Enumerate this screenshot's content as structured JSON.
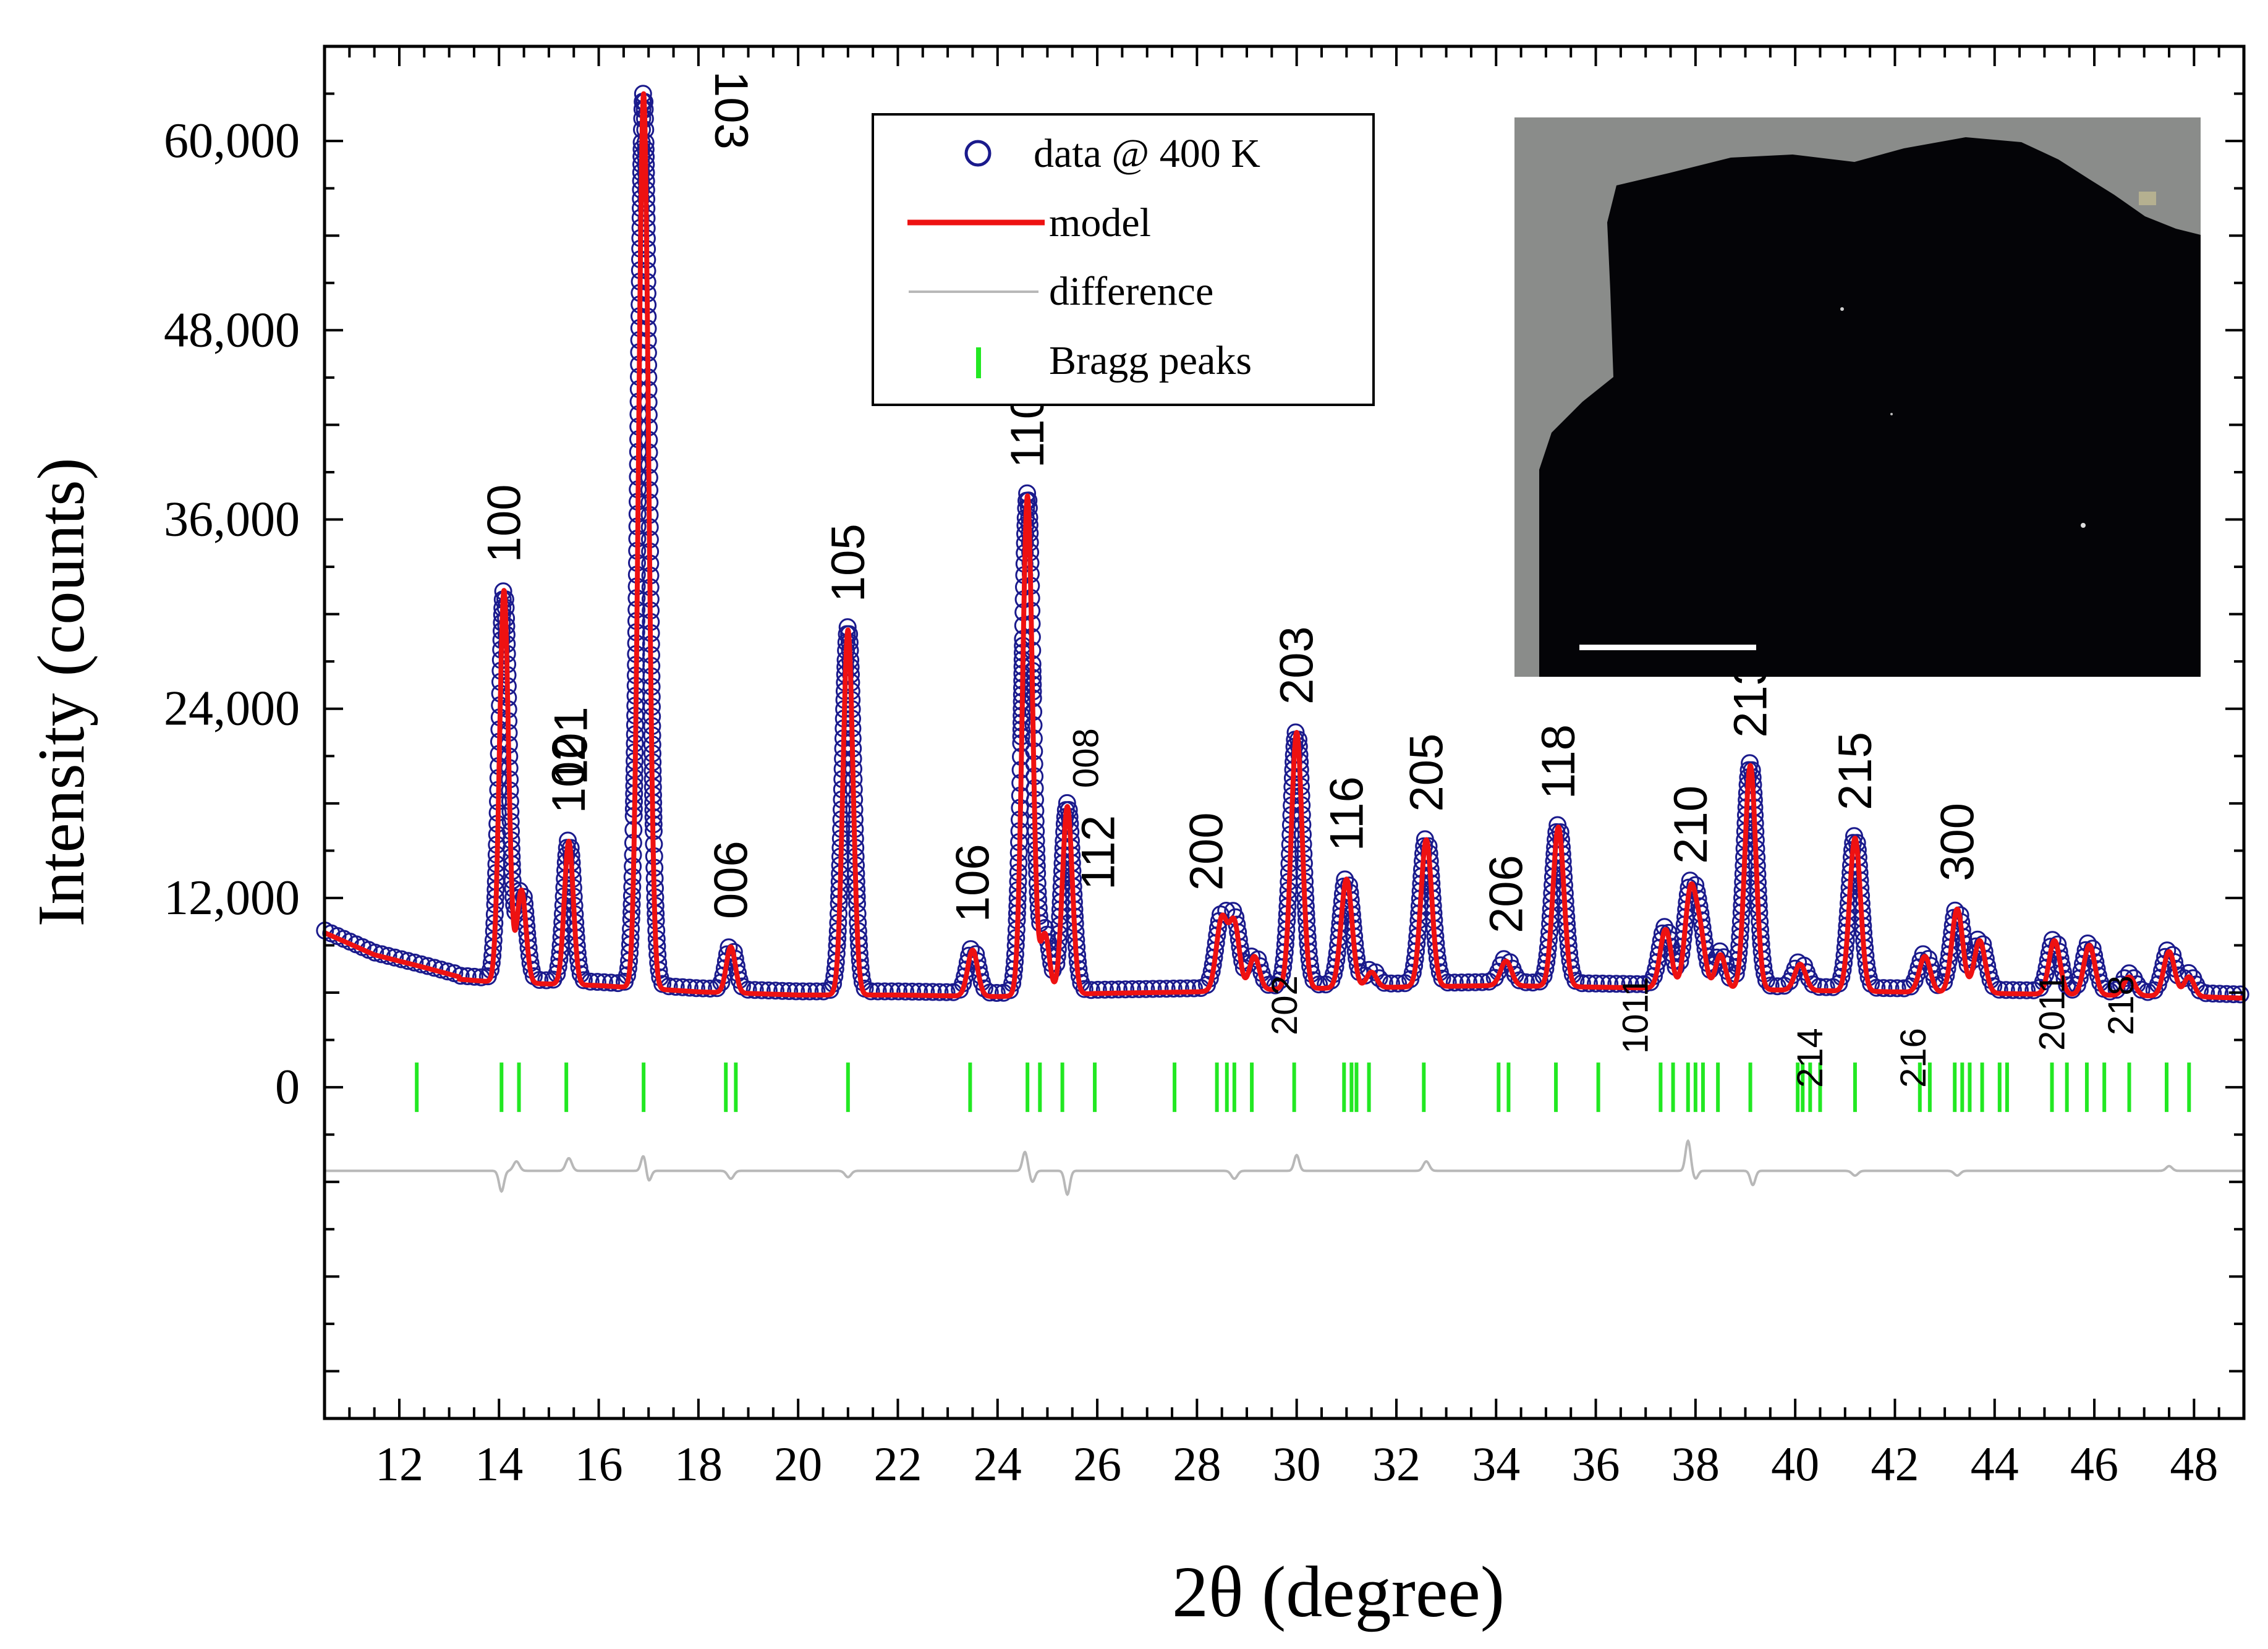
{
  "chart_data": {
    "type": "line",
    "title": "",
    "xlabel": "2θ (degree)",
    "ylabel": "Intensity (counts)",
    "xlim": [
      10.5,
      49
    ],
    "ylim": [
      -21000,
      66000
    ],
    "x_ticks": [
      "12",
      "14",
      "16",
      "18",
      "20",
      "22",
      "24",
      "26",
      "28",
      "30",
      "32",
      "34",
      "36",
      "38",
      "40",
      "42",
      "44",
      "46",
      "48"
    ],
    "y_ticks": [
      {
        "value": 0,
        "label": "0"
      },
      {
        "value": 12000,
        "label": "12,000"
      },
      {
        "value": 24000,
        "label": "24,000"
      },
      {
        "value": 36000,
        "label": "36,000"
      },
      {
        "value": 48000,
        "label": "48,000"
      },
      {
        "value": 60000,
        "label": "60,000"
      }
    ],
    "background": {
      "points": [
        [
          10.5,
          9800
        ],
        [
          11.5,
          8400
        ],
        [
          12.5,
          7600
        ],
        [
          13.2,
          7000
        ],
        [
          14,
          6800
        ],
        [
          16,
          6600
        ],
        [
          18,
          6200
        ],
        [
          20,
          6000
        ],
        [
          22,
          6000
        ],
        [
          24,
          5900
        ],
        [
          26,
          6100
        ],
        [
          28,
          6200
        ],
        [
          30,
          6400
        ],
        [
          32,
          6500
        ],
        [
          34,
          6600
        ],
        [
          36,
          6500
        ],
        [
          38,
          6400
        ],
        [
          40,
          6300
        ],
        [
          42,
          6200
        ],
        [
          44,
          6100
        ],
        [
          46,
          6000
        ],
        [
          48,
          5900
        ],
        [
          49,
          5800
        ]
      ]
    },
    "peaks": [
      {
        "hkl": "100",
        "x": 14.1,
        "y": 31500,
        "w": 0.09
      },
      {
        "hkl": "101",
        "x": 14.45,
        "y": 12500,
        "w": 0.09
      },
      {
        "hkl": "102",
        "x": 15.4,
        "y": 15600,
        "w": 0.09
      },
      {
        "hkl": "103",
        "x": 16.9,
        "y": 63000,
        "w": 0.1
      },
      {
        "hkl": "006",
        "x": 18.65,
        "y": 8900,
        "w": 0.09
      },
      {
        "hkl": "105",
        "x": 21.0,
        "y": 29000,
        "w": 0.1
      },
      {
        "hkl": "106",
        "x": 23.5,
        "y": 8700,
        "w": 0.1
      },
      {
        "hkl": "110",
        "x": 24.6,
        "y": 37500,
        "w": 0.1
      },
      {
        "hkl": "008",
        "x": 24.95,
        "y": 9700,
        "w": 0.09
      },
      {
        "hkl": "112",
        "x": 25.4,
        "y": 17800,
        "w": 0.1
      },
      {
        "hkl": "200",
        "x": 28.5,
        "y": 10700,
        "w": 0.11
      },
      {
        "hkl": "202",
        "x": 28.75,
        "y": 10300,
        "w": 0.1
      },
      {
        "hkl": "",
        "x": 29.15,
        "y": 8300,
        "w": 0.1
      },
      {
        "hkl": "203",
        "x": 30.0,
        "y": 22500,
        "w": 0.11
      },
      {
        "hkl": "116",
        "x": 31.0,
        "y": 13200,
        "w": 0.11
      },
      {
        "hkl": "",
        "x": 31.5,
        "y": 7300,
        "w": 0.1
      },
      {
        "hkl": "205",
        "x": 32.6,
        "y": 15700,
        "w": 0.11
      },
      {
        "hkl": "206",
        "x": 34.2,
        "y": 8000,
        "w": 0.11
      },
      {
        "hkl": "118",
        "x": 35.25,
        "y": 16500,
        "w": 0.11
      },
      {
        "hkl": "1011",
        "x": 37.4,
        "y": 10000,
        "w": 0.11
      },
      {
        "hkl": "210",
        "x": 37.9,
        "y": 12400,
        "w": 0.11
      },
      {
        "hkl": "",
        "x": 38.1,
        "y": 9300,
        "w": 0.1
      },
      {
        "hkl": "",
        "x": 38.5,
        "y": 8400,
        "w": 0.1
      },
      {
        "hkl": "213",
        "x": 39.1,
        "y": 20400,
        "w": 0.11
      },
      {
        "hkl": "214",
        "x": 40.1,
        "y": 7800,
        "w": 0.11
      },
      {
        "hkl": "215",
        "x": 41.2,
        "y": 15800,
        "w": 0.11
      },
      {
        "hkl": "216",
        "x": 42.6,
        "y": 8300,
        "w": 0.11
      },
      {
        "hkl": "300",
        "x": 43.25,
        "y": 11300,
        "w": 0.11
      },
      {
        "hkl": "",
        "x": 43.7,
        "y": 9300,
        "w": 0.11
      },
      {
        "hkl": "2011",
        "x": 45.2,
        "y": 9300,
        "w": 0.11
      },
      {
        "hkl": "218",
        "x": 45.9,
        "y": 9000,
        "w": 0.11
      },
      {
        "hkl": "",
        "x": 46.7,
        "y": 7000,
        "w": 0.11
      },
      {
        "hkl": "",
        "x": 47.5,
        "y": 8600,
        "w": 0.11
      },
      {
        "hkl": "",
        "x": 47.9,
        "y": 7000,
        "w": 0.1
      }
    ],
    "bragg_ticks": [
      12.35,
      14.05,
      14.4,
      15.35,
      16.9,
      18.55,
      18.75,
      21.0,
      23.45,
      24.6,
      24.85,
      25.3,
      25.95,
      27.55,
      28.4,
      28.6,
      28.75,
      29.1,
      29.95,
      30.95,
      31.1,
      31.2,
      31.45,
      32.55,
      34.05,
      34.25,
      35.2,
      36.05,
      37.3,
      37.55,
      37.85,
      38.0,
      38.15,
      38.45,
      39.1,
      40.05,
      40.15,
      40.3,
      40.5,
      41.2,
      42.5,
      42.7,
      43.2,
      43.35,
      43.5,
      43.75,
      44.1,
      44.25,
      45.15,
      45.45,
      45.85,
      46.2,
      46.7,
      47.45,
      47.9
    ],
    "difference": {
      "baseline": -5300,
      "features": [
        [
          14.05,
          -1300,
          0.05
        ],
        [
          14.35,
          600,
          0.06
        ],
        [
          15.4,
          800,
          0.06
        ],
        [
          16.9,
          1000,
          0.05
        ],
        [
          17.0,
          -700,
          0.05
        ],
        [
          18.65,
          -500,
          0.06
        ],
        [
          21.0,
          -400,
          0.06
        ],
        [
          24.55,
          1200,
          0.05
        ],
        [
          24.7,
          -700,
          0.05
        ],
        [
          25.4,
          -1500,
          0.05
        ],
        [
          28.75,
          -500,
          0.06
        ],
        [
          30.0,
          1000,
          0.05
        ],
        [
          32.6,
          600,
          0.06
        ],
        [
          37.85,
          1900,
          0.05
        ],
        [
          38.0,
          -500,
          0.05
        ],
        [
          39.15,
          -900,
          0.05
        ],
        [
          41.2,
          -300,
          0.06
        ],
        [
          43.25,
          -300,
          0.06
        ],
        [
          47.5,
          300,
          0.06
        ]
      ]
    },
    "series": [
      {
        "name": "data @ 400 K",
        "color": "#1a1a8c",
        "style": "open-circles"
      },
      {
        "name": "model",
        "color": "#ee1111",
        "style": "line"
      },
      {
        "name": "difference",
        "color": "#b8b8b8",
        "style": "line"
      },
      {
        "name": "Bragg peaks",
        "color": "#22e822",
        "style": "tick"
      }
    ],
    "legend_placement": "top-center",
    "inset": {
      "description": "crystal photograph with scale bar",
      "placement": "top-right"
    }
  }
}
